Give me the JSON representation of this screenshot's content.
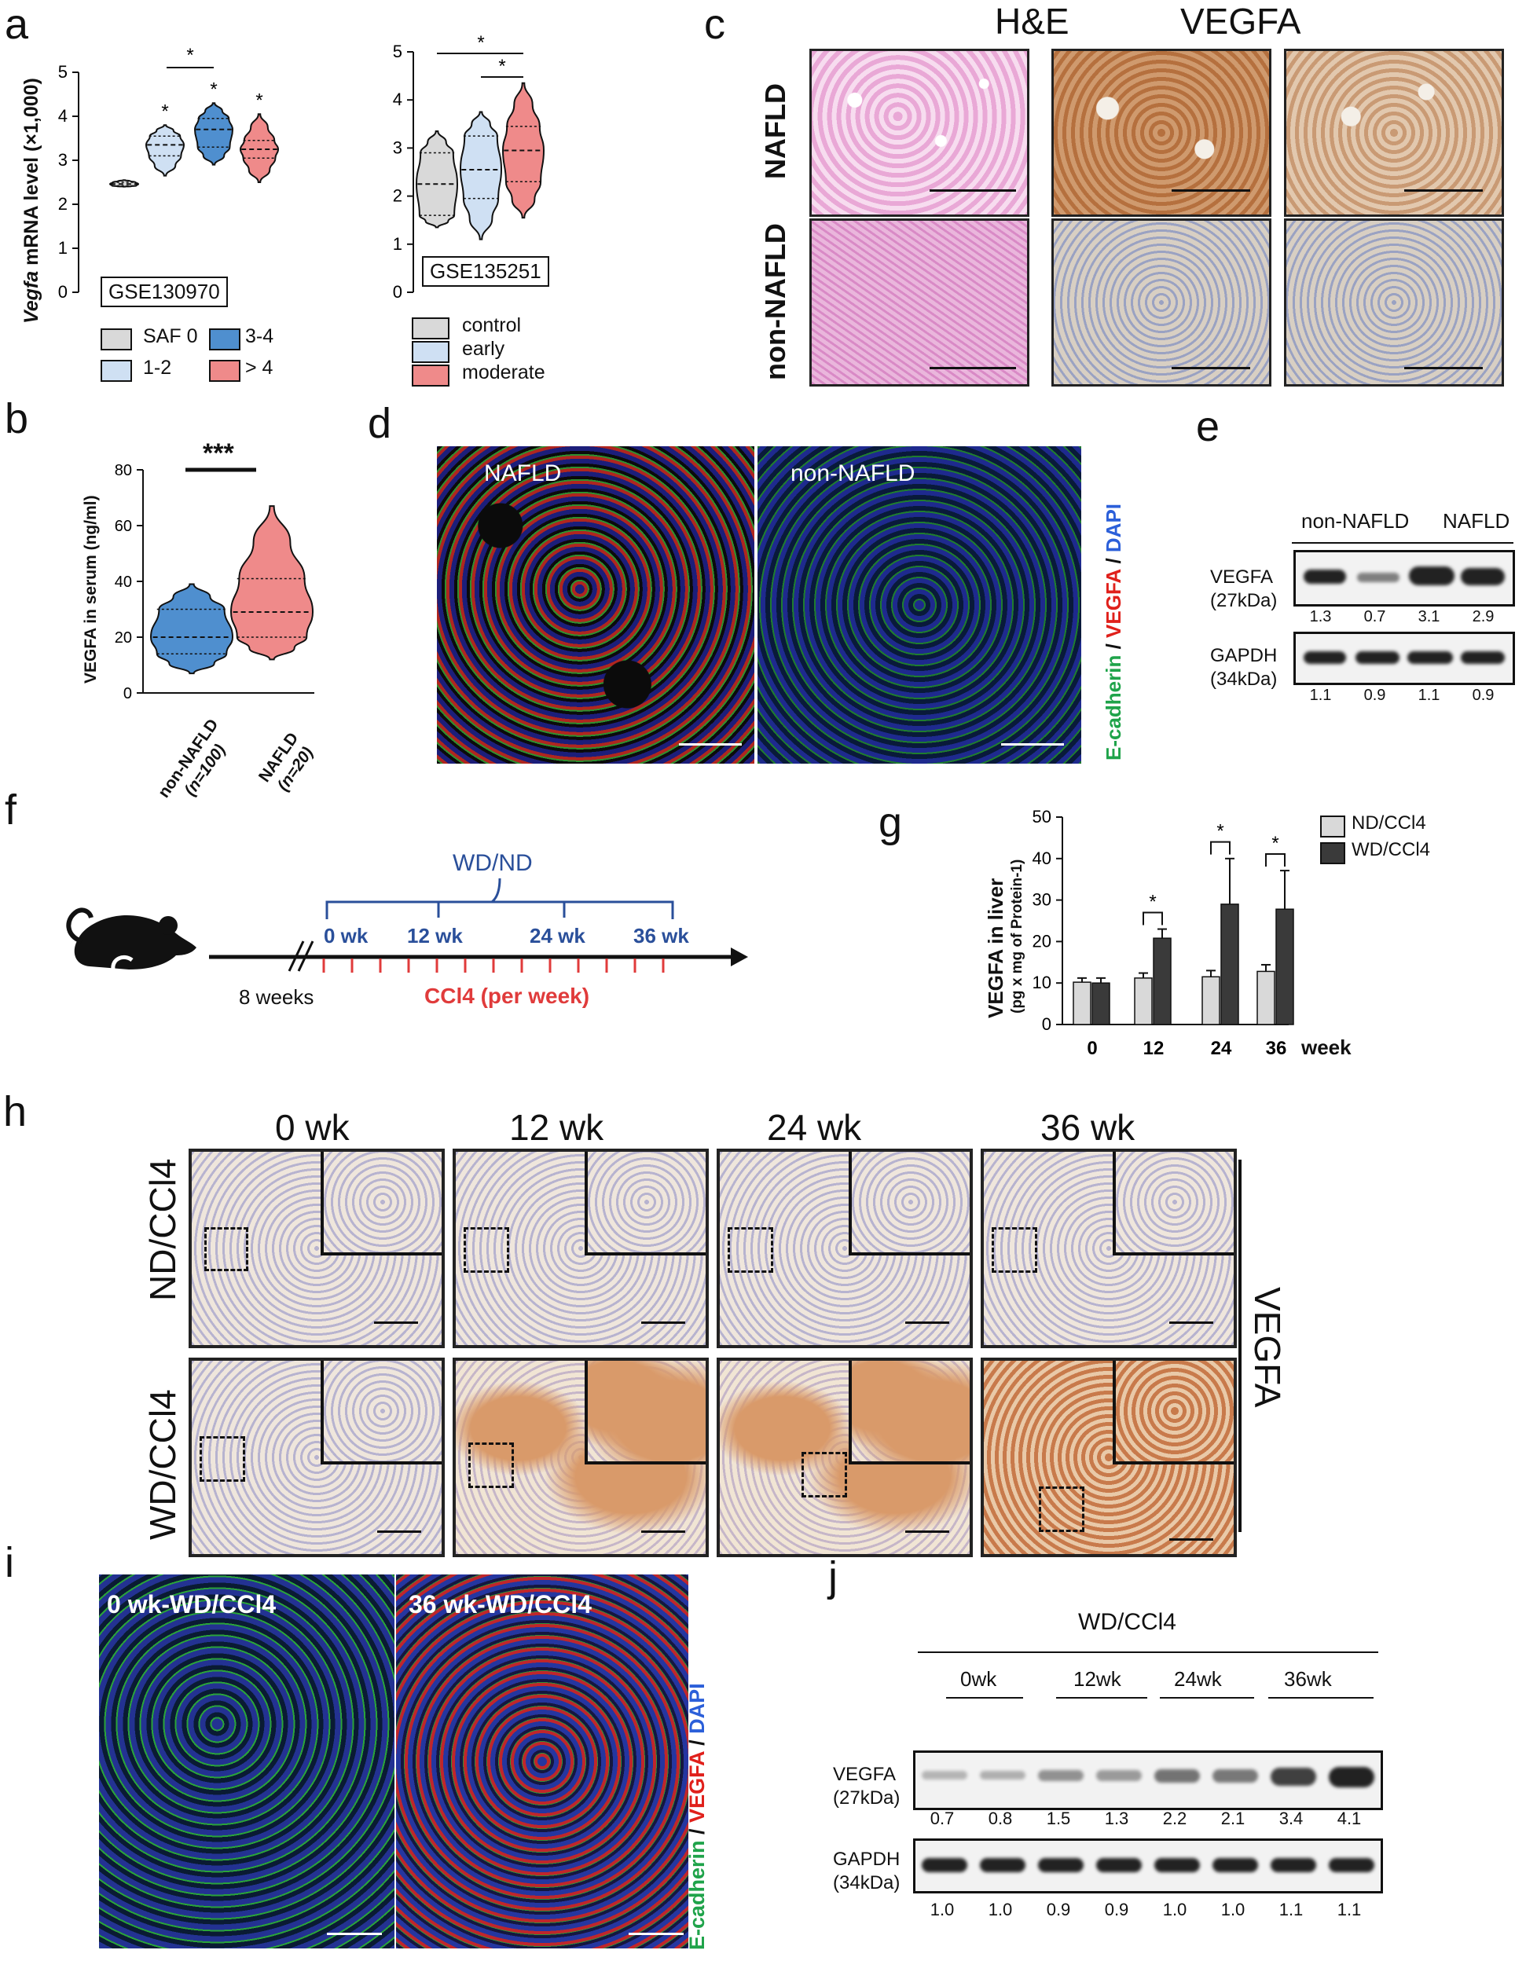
{
  "panels": {
    "a": "a",
    "b": "b",
    "c": "c",
    "d": "d",
    "e": "e",
    "f": "f",
    "g": "g",
    "h": "h",
    "i": "i",
    "j": "j"
  },
  "panel_a": {
    "ylabel_italic": "Vegfa",
    "ylabel_rest": " mRNA level (×1,000)",
    "left_tag": "GSE130970",
    "right_tag": "GSE135251",
    "left_legend": [
      "SAF 0",
      "3-4",
      "1-2",
      "> 4"
    ],
    "right_legend": [
      "control",
      "early",
      "moderate"
    ],
    "sig": "*"
  },
  "panel_b": {
    "ylabel": "VEGFA in serum (ng/ml)",
    "sig": "***",
    "group1": "non-NAFLD",
    "group1_n": "(n=100)",
    "group2": "NAFLD",
    "group2_n": "(n=20)"
  },
  "panel_c": {
    "col_he": "H&E",
    "col_vegfa": "VEGFA",
    "row1": "NAFLD",
    "row2": "non-NAFLD"
  },
  "panel_d": {
    "label1": "NAFLD",
    "label2": "non-NAFLD",
    "stain_ecad": "E-cadherin",
    "stain_sep1": " / ",
    "stain_vegfa": "VEGFA",
    "stain_sep2": " / ",
    "stain_dapi": "DAPI"
  },
  "panel_e": {
    "group1": "non-NAFLD",
    "group2": "NAFLD",
    "vegfa_label": "VEGFA",
    "vegfa_kda": "(27kDa)",
    "gapdh_label": "GAPDH",
    "gapdh_kda": "(34kDa)",
    "vegfa_values": [
      "1.3",
      "0.7",
      "3.1",
      "2.9"
    ],
    "gapdh_values": [
      "1.1",
      "0.9",
      "1.1",
      "0.9"
    ]
  },
  "panel_f": {
    "diet": "WD/ND",
    "timepoints": [
      "0 wk",
      "12 wk",
      "24 wk",
      "36 wk"
    ],
    "age": "8 weeks",
    "ccl4_text": "CCl4 (per week)"
  },
  "panel_g": {
    "week_label": "week"
  },
  "panel_h": {
    "timepoints": [
      "0 wk",
      "12 wk",
      "24 wk",
      "36 wk"
    ],
    "row1": "ND/CCl4",
    "row2": "WD/CCl4",
    "side_label": "VEGFA"
  },
  "panel_i": {
    "label1": "0 wk-WD/CCl4",
    "label2": "36 wk-WD/CCl4",
    "stain_ecad": "E-cadherin",
    "stain_sep1": " / ",
    "stain_vegfa": "VEGFA",
    "stain_sep2": " / ",
    "stain_dapi": "DAPI"
  },
  "panel_j": {
    "title": "WD/CCl4",
    "timepoints": [
      "0wk",
      "12wk",
      "24wk",
      "36wk"
    ],
    "vegfa_label": "VEGFA",
    "vegfa_kda": "(27kDa)",
    "gapdh_label": "GAPDH",
    "gapdh_kda": "(34kDa)",
    "vegfa_values": [
      "0.7",
      "0.8",
      "1.5",
      "1.3",
      "2.2",
      "2.1",
      "3.4",
      "4.1"
    ],
    "gapdh_values": [
      "1.0",
      "1.0",
      "0.9",
      "0.9",
      "1.0",
      "1.0",
      "1.1",
      "1.1"
    ]
  },
  "colors": {
    "gray": "#d9d9d9",
    "lightblue": "#cfe0f3",
    "blue": "#4f8fcf",
    "red": "#ef8a8a",
    "dark": "#3a3a3a",
    "green": "#1fa34a",
    "vegfa_red": "#e0201b",
    "dapi_blue": "#2b5fd9",
    "ccl4_red": "#e03b3b",
    "timeline_blue": "#2a4f9a"
  },
  "chart_data": [
    {
      "id": "a-left",
      "type": "violin",
      "ylabel": "Vegfa mRNA level (×1,000)",
      "ylim": [
        0,
        5
      ],
      "yticks": [
        0,
        1,
        2,
        3,
        4,
        5
      ],
      "series": [
        {
          "name": "SAF 0",
          "min": 2.4,
          "q1": 2.42,
          "median": 2.46,
          "q3": 2.5,
          "max": 2.55
        },
        {
          "name": "1-2",
          "min": 2.65,
          "q1": 3.1,
          "median": 3.35,
          "q3": 3.55,
          "max": 3.8
        },
        {
          "name": "3-4",
          "min": 2.9,
          "q1": 3.3,
          "median": 3.7,
          "q3": 3.95,
          "max": 4.3
        },
        {
          "name": "> 4",
          "min": 2.5,
          "q1": 3.05,
          "median": 3.25,
          "q3": 3.45,
          "max": 4.05
        }
      ],
      "annotation": "GSE130970"
    },
    {
      "id": "a-right",
      "type": "violin",
      "ylim": [
        0,
        5
      ],
      "yticks": [
        0,
        1,
        2,
        3,
        4,
        5
      ],
      "series": [
        {
          "name": "control",
          "min": 1.35,
          "q1": 1.6,
          "median": 2.25,
          "q3": 2.9,
          "max": 3.35
        },
        {
          "name": "early",
          "min": 1.1,
          "q1": 1.95,
          "median": 2.55,
          "q3": 3.25,
          "max": 3.75
        },
        {
          "name": "moderate",
          "min": 1.55,
          "q1": 2.3,
          "median": 2.95,
          "q3": 3.45,
          "max": 4.35
        }
      ],
      "annotation": "GSE135251"
    },
    {
      "id": "b",
      "type": "violin",
      "ylabel": "VEGFA in serum (ng/ml)",
      "ylim": [
        0,
        80
      ],
      "yticks": [
        0,
        20,
        40,
        60,
        80
      ],
      "categories": [
        "non-NAFLD (n=100)",
        "NAFLD (n=20)"
      ],
      "series": [
        {
          "name": "non-NAFLD",
          "min": 7,
          "q1": 14,
          "median": 20,
          "q3": 30,
          "max": 39
        },
        {
          "name": "NAFLD",
          "min": 12,
          "q1": 20,
          "median": 29,
          "q3": 41,
          "max": 67
        }
      ]
    },
    {
      "id": "g",
      "type": "bar",
      "ylabel": "VEGFA in liver",
      "ylabel2": "(pg x mg of Protein-1)",
      "ylim": [
        0,
        50
      ],
      "yticks": [
        0,
        10,
        20,
        30,
        40,
        50
      ],
      "categories": [
        "0",
        "12",
        "24",
        "36"
      ],
      "series": [
        {
          "name": "ND/CCl4",
          "values": [
            10.2,
            11.2,
            11.5,
            12.8
          ],
          "errors": [
            1.0,
            1.2,
            1.5,
            1.6
          ]
        },
        {
          "name": "WD/CCl4",
          "values": [
            10.0,
            20.8,
            29.0,
            27.8
          ],
          "errors": [
            1.2,
            2.2,
            11.0,
            9.3
          ]
        }
      ],
      "significance": [
        {
          "category": "12",
          "label": "*"
        },
        {
          "category": "24",
          "label": "*"
        },
        {
          "category": "36",
          "label": "*"
        }
      ]
    }
  ]
}
